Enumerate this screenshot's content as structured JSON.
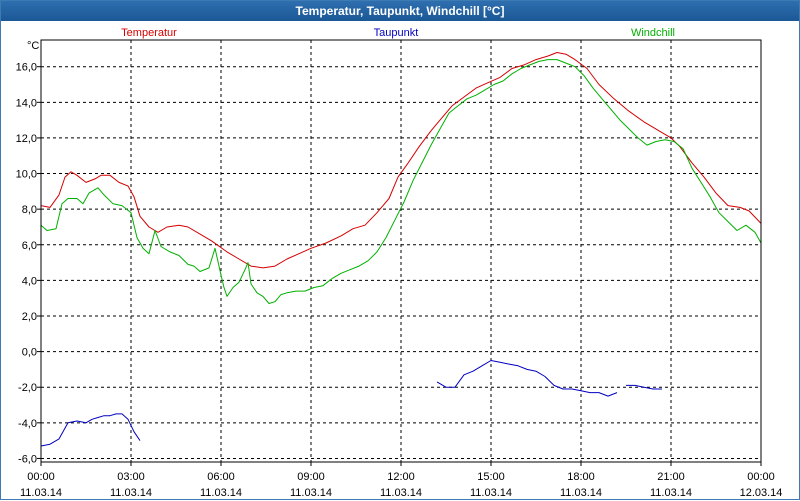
{
  "window": {
    "title": "Temperatur, Taupunkt, Windchill [°C]"
  },
  "colors": {
    "temperatur": "#d40000",
    "taupunkt": "#0000c0",
    "windchill": "#00b000",
    "grid": "#000000",
    "titlebar": "#2563a5"
  },
  "chart_data": {
    "type": "line",
    "title": "Temperatur, Taupunkt, Windchill [°C]",
    "ylabel": "°C",
    "ylim": [
      -6.2,
      17.5
    ],
    "xlim": [
      0,
      24
    ],
    "yticks": [
      {
        "value": -6,
        "label": "-6,0"
      },
      {
        "value": -4,
        "label": "-4,0"
      },
      {
        "value": -2,
        "label": "-2,0"
      },
      {
        "value": 0,
        "label": "0,0"
      },
      {
        "value": 2,
        "label": "2,0"
      },
      {
        "value": 4,
        "label": "4,0"
      },
      {
        "value": 6,
        "label": "6,0"
      },
      {
        "value": 8,
        "label": "8,0"
      },
      {
        "value": 10,
        "label": "10,0"
      },
      {
        "value": 12,
        "label": "12,0"
      },
      {
        "value": 14,
        "label": "14,0"
      },
      {
        "value": 16,
        "label": "16,0"
      }
    ],
    "xticks": [
      {
        "value": 0,
        "time": "00:00",
        "date": "11.03.14"
      },
      {
        "value": 3,
        "time": "03:00",
        "date": "11.03.14"
      },
      {
        "value": 6,
        "time": "06:00",
        "date": "11.03.14"
      },
      {
        "value": 9,
        "time": "09:00",
        "date": "11.03.14"
      },
      {
        "value": 12,
        "time": "12:00",
        "date": "11.03.14"
      },
      {
        "value": 15,
        "time": "15:00",
        "date": "11.03.14"
      },
      {
        "value": 18,
        "time": "18:00",
        "date": "11.03.14"
      },
      {
        "value": 21,
        "time": "21:00",
        "date": "11.03.14"
      },
      {
        "value": 24,
        "time": "00:00",
        "date": "12.03.14"
      }
    ],
    "legend": [
      "Temperatur",
      "Taupunkt",
      "Windchill"
    ],
    "series": [
      {
        "name": "Temperatur",
        "segments": [
          [
            [
              0,
              8.2
            ],
            [
              0.3,
              8.1
            ],
            [
              0.6,
              8.8
            ],
            [
              0.8,
              9.8
            ],
            [
              1.0,
              10.1
            ],
            [
              1.2,
              9.9
            ],
            [
              1.5,
              9.5
            ],
            [
              1.8,
              9.7
            ],
            [
              2.0,
              9.9
            ],
            [
              2.3,
              9.9
            ],
            [
              2.6,
              9.5
            ],
            [
              2.9,
              9.3
            ],
            [
              3.1,
              8.7
            ],
            [
              3.3,
              7.6
            ],
            [
              3.6,
              7.0
            ],
            [
              3.9,
              6.7
            ],
            [
              4.2,
              7.0
            ],
            [
              4.6,
              7.1
            ],
            [
              4.9,
              7.0
            ],
            [
              5.3,
              6.6
            ],
            [
              5.7,
              6.2
            ],
            [
              6.2,
              5.6
            ],
            [
              6.6,
              5.2
            ],
            [
              7.0,
              4.8
            ],
            [
              7.4,
              4.7
            ],
            [
              7.8,
              4.8
            ],
            [
              8.2,
              5.2
            ],
            [
              8.6,
              5.5
            ],
            [
              9.0,
              5.8
            ],
            [
              9.5,
              6.1
            ],
            [
              10.0,
              6.5
            ],
            [
              10.4,
              6.9
            ],
            [
              10.8,
              7.1
            ],
            [
              11.2,
              7.8
            ],
            [
              11.6,
              8.6
            ],
            [
              11.9,
              9.8
            ],
            [
              12.2,
              10.5
            ],
            [
              12.6,
              11.5
            ],
            [
              13.0,
              12.4
            ],
            [
              13.3,
              13.0
            ],
            [
              13.7,
              13.8
            ],
            [
              14.1,
              14.3
            ],
            [
              14.5,
              14.8
            ],
            [
              14.9,
              15.1
            ],
            [
              15.3,
              15.4
            ],
            [
              15.7,
              15.9
            ],
            [
              16.1,
              16.1
            ],
            [
              16.5,
              16.4
            ],
            [
              16.9,
              16.6
            ],
            [
              17.2,
              16.8
            ],
            [
              17.5,
              16.7
            ],
            [
              17.8,
              16.4
            ],
            [
              18.2,
              15.9
            ],
            [
              18.6,
              15.0
            ],
            [
              19.1,
              14.2
            ],
            [
              19.6,
              13.5
            ],
            [
              20.1,
              12.9
            ],
            [
              20.6,
              12.4
            ],
            [
              21.0,
              12.0
            ],
            [
              21.3,
              11.5
            ],
            [
              21.7,
              10.6
            ],
            [
              22.1,
              9.8
            ],
            [
              22.5,
              8.9
            ],
            [
              22.9,
              8.2
            ],
            [
              23.3,
              8.1
            ],
            [
              23.6,
              7.9
            ],
            [
              24.0,
              7.2
            ]
          ]
        ]
      },
      {
        "name": "Taupunkt",
        "segments": [
          [
            [
              0,
              -5.3
            ],
            [
              0.3,
              -5.2
            ],
            [
              0.6,
              -4.9
            ],
            [
              0.9,
              -4.0
            ],
            [
              1.2,
              -3.9
            ],
            [
              1.5,
              -4.0
            ],
            [
              1.7,
              -3.8
            ],
            [
              1.9,
              -3.7
            ],
            [
              2.1,
              -3.6
            ],
            [
              2.3,
              -3.6
            ],
            [
              2.5,
              -3.5
            ],
            [
              2.7,
              -3.5
            ],
            [
              2.9,
              -3.8
            ],
            [
              3.1,
              -4.5
            ],
            [
              3.3,
              -5.0
            ]
          ],
          [
            [
              13.2,
              -1.7
            ],
            [
              13.5,
              -2.0
            ],
            [
              13.8,
              -2.0
            ],
            [
              14.1,
              -1.3
            ],
            [
              14.4,
              -1.1
            ],
            [
              14.7,
              -0.8
            ],
            [
              15.0,
              -0.5
            ],
            [
              15.3,
              -0.6
            ],
            [
              15.6,
              -0.7
            ],
            [
              15.9,
              -0.8
            ],
            [
              16.2,
              -1.0
            ],
            [
              16.5,
              -1.1
            ],
            [
              16.8,
              -1.4
            ],
            [
              17.1,
              -1.9
            ],
            [
              17.4,
              -2.1
            ],
            [
              17.7,
              -2.1
            ],
            [
              18.0,
              -2.2
            ],
            [
              18.3,
              -2.3
            ],
            [
              18.6,
              -2.3
            ],
            [
              18.9,
              -2.5
            ],
            [
              19.2,
              -2.3
            ]
          ],
          [
            [
              19.5,
              -1.9
            ],
            [
              19.8,
              -1.9
            ],
            [
              20.1,
              -2.0
            ],
            [
              20.4,
              -2.1
            ],
            [
              20.7,
              -2.1
            ]
          ]
        ]
      },
      {
        "name": "Windchill",
        "segments": [
          [
            [
              0,
              7.1
            ],
            [
              0.2,
              6.8
            ],
            [
              0.5,
              6.9
            ],
            [
              0.7,
              8.3
            ],
            [
              0.9,
              8.6
            ],
            [
              1.2,
              8.6
            ],
            [
              1.4,
              8.3
            ],
            [
              1.6,
              8.9
            ],
            [
              1.9,
              9.2
            ],
            [
              2.1,
              8.8
            ],
            [
              2.4,
              8.3
            ],
            [
              2.7,
              8.2
            ],
            [
              3.0,
              7.8
            ],
            [
              3.2,
              6.4
            ],
            [
              3.4,
              5.8
            ],
            [
              3.6,
              5.5
            ],
            [
              3.8,
              6.8
            ],
            [
              4.0,
              5.9
            ],
            [
              4.3,
              5.6
            ],
            [
              4.6,
              5.4
            ],
            [
              4.9,
              4.9
            ],
            [
              5.1,
              4.8
            ],
            [
              5.3,
              4.5
            ],
            [
              5.6,
              4.7
            ],
            [
              5.8,
              5.8
            ],
            [
              6.0,
              4.3
            ],
            [
              6.1,
              3.6
            ],
            [
              6.2,
              3.1
            ],
            [
              6.4,
              3.6
            ],
            [
              6.6,
              3.9
            ],
            [
              6.8,
              4.6
            ],
            [
              6.9,
              5.0
            ],
            [
              7.0,
              3.8
            ],
            [
              7.2,
              3.3
            ],
            [
              7.4,
              3.1
            ],
            [
              7.6,
              2.7
            ],
            [
              7.8,
              2.8
            ],
            [
              8.0,
              3.2
            ],
            [
              8.2,
              3.3
            ],
            [
              8.5,
              3.4
            ],
            [
              8.8,
              3.4
            ],
            [
              9.1,
              3.6
            ],
            [
              9.4,
              3.7
            ],
            [
              9.7,
              4.1
            ],
            [
              10.0,
              4.4
            ],
            [
              10.3,
              4.6
            ],
            [
              10.6,
              4.8
            ],
            [
              10.9,
              5.1
            ],
            [
              11.2,
              5.6
            ],
            [
              11.5,
              6.4
            ],
            [
              11.8,
              7.4
            ],
            [
              12.1,
              8.4
            ],
            [
              12.4,
              9.6
            ],
            [
              12.7,
              10.6
            ],
            [
              13.0,
              11.6
            ],
            [
              13.3,
              12.5
            ],
            [
              13.6,
              13.4
            ],
            [
              13.9,
              13.8
            ],
            [
              14.2,
              14.2
            ],
            [
              14.5,
              14.4
            ],
            [
              14.8,
              14.7
            ],
            [
              15.1,
              15.0
            ],
            [
              15.4,
              15.2
            ],
            [
              15.7,
              15.6
            ],
            [
              16.0,
              15.9
            ],
            [
              16.3,
              16.1
            ],
            [
              16.6,
              16.3
            ],
            [
              16.9,
              16.4
            ],
            [
              17.2,
              16.4
            ],
            [
              17.5,
              16.2
            ],
            [
              17.8,
              16.0
            ],
            [
              18.1,
              15.5
            ],
            [
              18.4,
              14.8
            ],
            [
              18.7,
              14.2
            ],
            [
              19.0,
              13.6
            ],
            [
              19.3,
              13.0
            ],
            [
              19.6,
              12.5
            ],
            [
              19.9,
              12.0
            ],
            [
              20.2,
              11.6
            ],
            [
              20.5,
              11.8
            ],
            [
              20.8,
              11.9
            ],
            [
              21.1,
              11.8
            ],
            [
              21.4,
              11.4
            ],
            [
              21.7,
              10.3
            ],
            [
              22.0,
              9.5
            ],
            [
              22.3,
              8.7
            ],
            [
              22.6,
              7.8
            ],
            [
              22.9,
              7.3
            ],
            [
              23.2,
              6.8
            ],
            [
              23.5,
              7.1
            ],
            [
              23.8,
              6.7
            ],
            [
              24.0,
              6.1
            ]
          ]
        ]
      }
    ]
  }
}
